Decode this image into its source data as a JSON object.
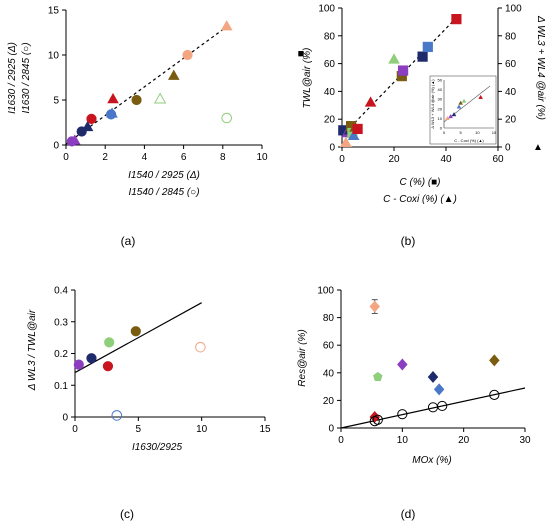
{
  "panels": [
    {
      "id": "a",
      "caption": "(a)",
      "type": "scatter",
      "xlim": [
        0,
        10
      ],
      "ylim": [
        0,
        15
      ],
      "xticks": [
        "0",
        "2",
        "4",
        "6",
        "8",
        "10"
      ],
      "yticks": [
        "0",
        "5",
        "10",
        "15"
      ],
      "xlabel_lines": [
        "I1540 / 2925 (Δ)",
        "I1540 / 2845 (○)"
      ],
      "ylabel_lines": [
        "I1630 / 2925 (Δ)",
        "I1630 / 2845 (○)"
      ],
      "trendline": {
        "x": [
          0,
          8.3
        ],
        "y": [
          0.1,
          13.3
        ],
        "style": "dashed"
      },
      "points": [
        {
          "x": 0.3,
          "y": 0.4,
          "shape": "circle",
          "fill": "#8b3fc0"
        },
        {
          "x": 0.45,
          "y": 0.5,
          "shape": "triangle",
          "fill": "#8b3fc0"
        },
        {
          "x": 0.8,
          "y": 1.5,
          "shape": "circle",
          "fill": "#1f2a6b"
        },
        {
          "x": 1.1,
          "y": 2.0,
          "shape": "triangle",
          "fill": "#1f2a6b"
        },
        {
          "x": 1.3,
          "y": 2.9,
          "shape": "circle",
          "fill": "#c8141e"
        },
        {
          "x": 2.3,
          "y": 3.4,
          "shape": "circle",
          "fill": "#4a78c8"
        },
        {
          "x": 2.35,
          "y": 3.5,
          "shape": "triangle",
          "fill": "#4a78c8"
        },
        {
          "x": 2.4,
          "y": 5.1,
          "shape": "triangle",
          "fill": "#c8141e"
        },
        {
          "x": 3.6,
          "y": 5.0,
          "shape": "circle",
          "fill": "#7a5c10"
        },
        {
          "x": 4.8,
          "y": 5.1,
          "shape": "triangle",
          "fill": "none",
          "stroke": "#8fce7a"
        },
        {
          "x": 5.5,
          "y": 7.7,
          "shape": "triangle",
          "fill": "#7a5c10"
        },
        {
          "x": 6.2,
          "y": 10.0,
          "shape": "circle",
          "fill": "#f4a582"
        },
        {
          "x": 8.2,
          "y": 13.2,
          "shape": "triangle",
          "fill": "#f4a582"
        },
        {
          "x": 8.2,
          "y": 3.0,
          "shape": "circle",
          "fill": "none",
          "stroke": "#8fce7a"
        }
      ]
    },
    {
      "id": "b",
      "caption": "(b)",
      "type": "scatter",
      "xlim": [
        0,
        60
      ],
      "ylim": [
        0,
        100
      ],
      "xticks": [
        "0",
        "20",
        "40",
        "60"
      ],
      "yticks": [
        "0",
        "20",
        "40",
        "60",
        "80",
        "100"
      ],
      "yticks_right": [
        "0",
        "20",
        "40",
        "60",
        "80",
        "100"
      ],
      "xlabel_lines": [
        "C (%) (■)",
        "C - Coxi (%) (▲)"
      ],
      "ylabel_left": "TWL@air (%)",
      "ylabel_left_symbol": "■",
      "ylabel_right": "Δ WL3 + WL4 @air (%)",
      "ylabel_right_symbol": "▲",
      "trendline": {
        "x": [
          0,
          44
        ],
        "y": [
          8,
          93
        ],
        "style": "dashed"
      },
      "points": [
        {
          "x": 0.5,
          "y": 12,
          "shape": "square",
          "fill": "#1f2a6b"
        },
        {
          "x": 1.5,
          "y": 3,
          "shape": "triangle",
          "fill": "#f4a582"
        },
        {
          "x": 2,
          "y": 10,
          "shape": "triangle",
          "fill": "#8b3fc0"
        },
        {
          "x": 3,
          "y": 12,
          "shape": "triangle",
          "fill": "#1f2a6b"
        },
        {
          "x": 3.5,
          "y": 15,
          "shape": "square",
          "fill": "#7a5c10"
        },
        {
          "x": 4,
          "y": 10,
          "shape": "square",
          "fill": "#8fce7a"
        },
        {
          "x": 4.5,
          "y": 8,
          "shape": "triangle",
          "fill": "#4a78c8"
        },
        {
          "x": 5,
          "y": 14,
          "shape": "triangle",
          "fill": "#7a5c10"
        },
        {
          "x": 6,
          "y": 13,
          "shape": "square",
          "fill": "#c8141e"
        },
        {
          "x": 11,
          "y": 32,
          "shape": "triangle",
          "fill": "#c8141e"
        },
        {
          "x": 20,
          "y": 63,
          "shape": "triangle",
          "fill": "#8fce7a"
        },
        {
          "x": 23,
          "y": 51,
          "shape": "square",
          "fill": "#7a5c10"
        },
        {
          "x": 23.5,
          "y": 55,
          "shape": "square",
          "fill": "#8b3fc0"
        },
        {
          "x": 31,
          "y": 65,
          "shape": "square",
          "fill": "#1f2a6b"
        },
        {
          "x": 33,
          "y": 72,
          "shape": "square",
          "fill": "#4a78c8"
        },
        {
          "x": 44,
          "y": 92,
          "shape": "square",
          "fill": "#c8141e"
        }
      ],
      "inset": {
        "xlim": [
          0,
          15
        ],
        "ylim": [
          0,
          50
        ],
        "xticks": [
          "0",
          "5",
          "10",
          "15"
        ],
        "yticks": [
          "0",
          "10",
          "20",
          "30",
          "40",
          "50"
        ],
        "xlabel": "C - Coxi (%) (▲)",
        "ylabel": "Δ WL3 + WL4 @air (%) (▲)",
        "points": [
          {
            "x": 1.0,
            "y": 10,
            "fill": "#f4a582"
          },
          {
            "x": 2.0,
            "y": 12,
            "fill": "#8b3fc0"
          },
          {
            "x": 3.0,
            "y": 14,
            "fill": "#1f2a6b"
          },
          {
            "x": 4.5,
            "y": 22,
            "fill": "#4a78c8"
          },
          {
            "x": 5.0,
            "y": 26,
            "fill": "#7a5c10"
          },
          {
            "x": 6.0,
            "y": 28,
            "fill": "#8fce7a"
          },
          {
            "x": 11.0,
            "y": 32,
            "fill": "#c8141e"
          }
        ]
      }
    },
    {
      "id": "c",
      "caption": "(c)",
      "type": "scatter",
      "xlim": [
        0,
        15
      ],
      "ylim": [
        0,
        0.4
      ],
      "xticks": [
        "0",
        "5",
        "10",
        "15"
      ],
      "yticks": [
        "0",
        "0.1",
        "0.2",
        "0.3",
        "0.4"
      ],
      "xlabel": "I1630/2925",
      "ylabel": "Δ WL3 / TWL@air",
      "trendline": {
        "x": [
          0,
          10
        ],
        "y": [
          0.14,
          0.36
        ],
        "style": "solid"
      },
      "points": [
        {
          "x": 0.3,
          "y": 0.165,
          "shape": "circle",
          "fill": "#8b3fc0"
        },
        {
          "x": 1.3,
          "y": 0.185,
          "shape": "circle",
          "fill": "#1f2a6b"
        },
        {
          "x": 2.6,
          "y": 0.16,
          "shape": "circle",
          "fill": "#c8141e"
        },
        {
          "x": 2.7,
          "y": 0.235,
          "shape": "circle",
          "fill": "#8fce7a"
        },
        {
          "x": 4.8,
          "y": 0.27,
          "shape": "circle",
          "fill": "#7a5c10"
        },
        {
          "x": 3.3,
          "y": 0.005,
          "shape": "circle",
          "fill": "none",
          "stroke": "#4a78c8"
        },
        {
          "x": 9.9,
          "y": 0.22,
          "shape": "circle",
          "fill": "none",
          "stroke": "#f4a582"
        }
      ]
    },
    {
      "id": "d",
      "caption": "(d)",
      "type": "scatter",
      "xlim": [
        0,
        30
      ],
      "ylim": [
        0,
        100
      ],
      "xticks": [
        "0",
        "10",
        "20",
        "30"
      ],
      "yticks": [
        "0",
        "20",
        "40",
        "60",
        "80",
        "100"
      ],
      "xlabel": "MOx (%)",
      "ylabel": "Res@air (%)",
      "trendline": {
        "x": [
          0,
          30
        ],
        "y": [
          0,
          29
        ],
        "style": "solid"
      },
      "points": [
        {
          "x": 5.5,
          "y": 88,
          "shape": "diamond",
          "fill": "#f4a582",
          "err": 5
        },
        {
          "x": 6,
          "y": 37,
          "shape": "pentagon",
          "fill": "#8fce7a"
        },
        {
          "x": 10,
          "y": 46,
          "shape": "diamond",
          "fill": "#8b3fc0"
        },
        {
          "x": 15,
          "y": 37,
          "shape": "diamond",
          "fill": "#1f2a6b"
        },
        {
          "x": 16,
          "y": 28,
          "shape": "diamond",
          "fill": "#4a78c8"
        },
        {
          "x": 25,
          "y": 49,
          "shape": "diamond",
          "fill": "#7a5c10"
        },
        {
          "x": 5.5,
          "y": 8,
          "shape": "diamond",
          "fill": "#c8141e"
        },
        {
          "x": 5.5,
          "y": 5,
          "shape": "circle",
          "fill": "none",
          "stroke": "#000000"
        },
        {
          "x": 6,
          "y": 6,
          "shape": "circle",
          "fill": "none",
          "stroke": "#000000"
        },
        {
          "x": 10,
          "y": 10,
          "shape": "circle",
          "fill": "none",
          "stroke": "#000000"
        },
        {
          "x": 15,
          "y": 15,
          "shape": "circle",
          "fill": "none",
          "stroke": "#000000"
        },
        {
          "x": 16.5,
          "y": 16,
          "shape": "circle",
          "fill": "none",
          "stroke": "#000000"
        },
        {
          "x": 25,
          "y": 24,
          "shape": "circle",
          "fill": "none",
          "stroke": "#000000"
        }
      ]
    }
  ]
}
